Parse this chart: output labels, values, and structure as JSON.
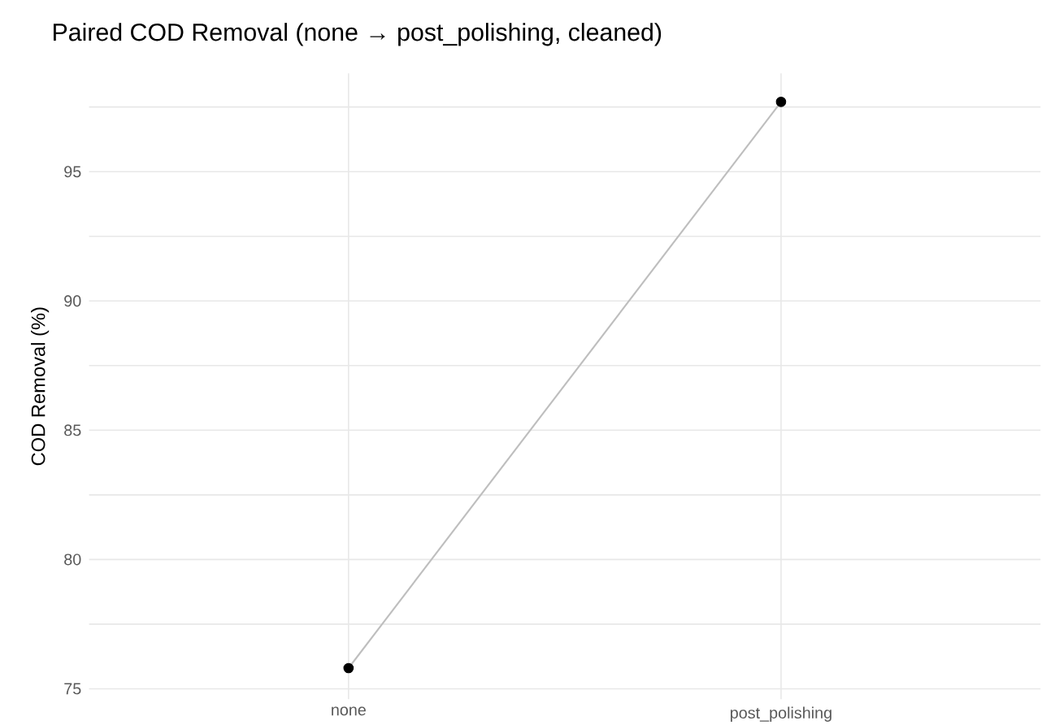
{
  "chart_data": {
    "type": "line",
    "title": "Paired COD Removal (none → post_polishing, cleaned)",
    "ylabel": "COD Removal (%)",
    "categories": [
      "none",
      "post_polishing"
    ],
    "series": [
      {
        "color": "#bebebe",
        "values": [
          75.8,
          97.7
        ]
      },
      {
        "type": "scatter",
        "color": "#000000",
        "values": [
          75.8,
          97.7
        ]
      }
    ],
    "ylim": [
      74.6,
      98.8
    ],
    "yticks": [
      75,
      {
        "value": 77.5,
        "label": null
      },
      80,
      {
        "value": 82.5,
        "label": null
      },
      85,
      {
        "value": 87.5,
        "label": null
      },
      90,
      {
        "value": 92.5,
        "label": null
      },
      95,
      {
        "value": 97.5,
        "label": null
      }
    ],
    "grid": true
  }
}
